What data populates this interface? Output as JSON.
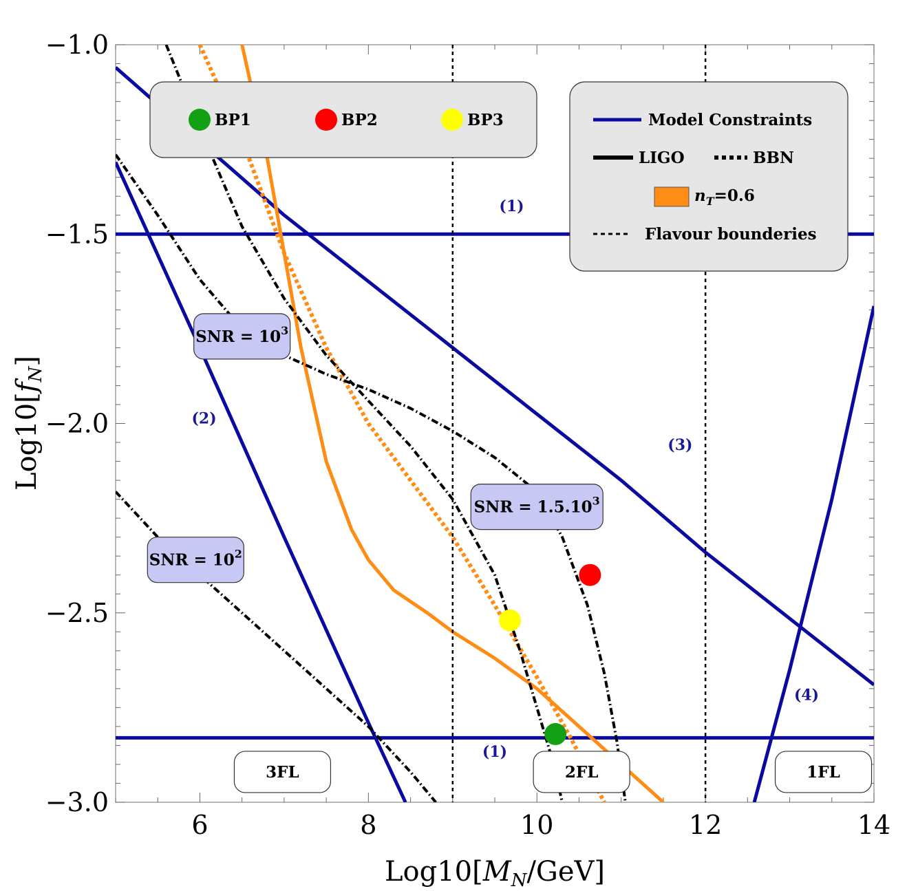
{
  "chart_data": {
    "type": "line",
    "xlabel": "Log10[M_N/GeV]",
    "ylabel": "Log10[f_N]",
    "xlim": [
      5,
      14
    ],
    "ylim": [
      -3.0,
      -1.0
    ],
    "x_ticks": [
      "6",
      "8",
      "10",
      "12",
      "14"
    ],
    "y_ticks": [
      "-1.0",
      "-1.5",
      "-2.0",
      "-2.5",
      "-3.0"
    ],
    "colors": {
      "model": "#0a0aa0",
      "orange": "#ff8c14",
      "black": "#000000",
      "legend_box": "#e6e6e6",
      "snr_box": "#c8c8f5",
      "bp1": "#14a014",
      "bp2": "#ff0000",
      "bp3": "#ffff00"
    },
    "series": [
      {
        "name": "(1)",
        "style": "model",
        "x": [
          5,
          14
        ],
        "y": [
          -1.5,
          -1.5
        ]
      },
      {
        "name": "(1)",
        "style": "model",
        "x": [
          5,
          14
        ],
        "y": [
          -2.83,
          -2.83
        ]
      },
      {
        "name": "(2)",
        "style": "model",
        "x": [
          5.0,
          6.0,
          7.0,
          8.0,
          8.44
        ],
        "y": [
          -1.31,
          -1.8,
          -2.3,
          -2.79,
          -3.0
        ]
      },
      {
        "name": "(3)",
        "style": "model",
        "x": [
          5.0,
          7.0,
          9.0,
          11.0,
          12.0,
          14.0
        ],
        "y": [
          -1.06,
          -1.45,
          -1.8,
          -2.15,
          -2.34,
          -2.69
        ]
      },
      {
        "name": "(4)",
        "style": "model",
        "x": [
          12.58,
          13.0,
          13.5,
          14.0
        ],
        "y": [
          -3.0,
          -2.65,
          -2.2,
          -1.69
        ]
      },
      {
        "name": "",
        "style": "orange-solid",
        "x": [
          6.5,
          6.8,
          7.0,
          7.2,
          7.5,
          7.8,
          8.0,
          8.3,
          8.7,
          9.0,
          9.5,
          10.0,
          10.5,
          11.0,
          11.5
        ],
        "y": [
          -1.0,
          -1.3,
          -1.55,
          -1.8,
          -2.1,
          -2.28,
          -2.36,
          -2.44,
          -2.5,
          -2.55,
          -2.62,
          -2.7,
          -2.8,
          -2.9,
          -3.0
        ]
      },
      {
        "name": "",
        "style": "orange-dot",
        "x": [
          6.0,
          6.5,
          7.0,
          7.5,
          8.0,
          8.5,
          9.0,
          9.5,
          10.0,
          10.4,
          10.8
        ],
        "y": [
          -1.0,
          -1.25,
          -1.55,
          -1.8,
          -2.0,
          -2.15,
          -2.3,
          -2.48,
          -2.67,
          -2.83,
          -3.0
        ]
      },
      {
        "name": "",
        "style": "black-dot",
        "x": [
          5.6,
          6.0,
          6.5,
          7.0,
          7.5,
          8.0,
          8.5,
          9.0,
          9.5,
          9.8,
          10.0,
          10.2,
          10.3
        ],
        "y": [
          -1.0,
          -1.22,
          -1.48,
          -1.67,
          -1.82,
          -1.94,
          -2.06,
          -2.2,
          -2.4,
          -2.6,
          -2.75,
          -2.9,
          -3.0
        ]
      },
      {
        "name": "",
        "style": "black-dot",
        "x": [
          5.0,
          5.5,
          6.0,
          6.5,
          7.0,
          7.5,
          8.0,
          8.5,
          9.0,
          9.5,
          10.0,
          10.3,
          10.6,
          10.8,
          10.95,
          11.05
        ],
        "y": [
          -1.29,
          -1.45,
          -1.62,
          -1.75,
          -1.82,
          -1.87,
          -1.91,
          -1.96,
          -2.02,
          -2.09,
          -2.18,
          -2.3,
          -2.48,
          -2.66,
          -2.84,
          -3.0
        ]
      },
      {
        "name": "",
        "style": "black-dot",
        "x": [
          5.0,
          5.5,
          6.0,
          6.5,
          7.0,
          7.5,
          8.0,
          8.5,
          8.8
        ],
        "y": [
          -2.18,
          -2.3,
          -2.4,
          -2.5,
          -2.6,
          -2.7,
          -2.8,
          -2.92,
          -3.0
        ]
      },
      {
        "name": "",
        "style": "flavour",
        "x": [
          9,
          9
        ],
        "y": [
          -1.0,
          -3.0
        ]
      },
      {
        "name": "",
        "style": "flavour",
        "x": [
          12,
          12
        ],
        "y": [
          -1.0,
          -3.0
        ]
      }
    ],
    "points": [
      {
        "name": "BP1",
        "x": 10.22,
        "y": -2.82,
        "color": "#14a014"
      },
      {
        "name": "BP2",
        "x": 10.63,
        "y": -2.4,
        "color": "#ff0000"
      },
      {
        "name": "BP3",
        "x": 9.68,
        "y": -2.52,
        "color": "#ffff00"
      }
    ],
    "annotations": {
      "region_labels": [
        {
          "text": "(1)",
          "x": 9.7,
          "y": -1.44
        },
        {
          "text": "(1)",
          "x": 9.5,
          "y": -2.88
        },
        {
          "text": "(2)",
          "x": 6.05,
          "y": -2.0
        },
        {
          "text": "(3)",
          "x": 11.7,
          "y": -2.07
        },
        {
          "text": "(4)",
          "x": 13.2,
          "y": -2.73
        }
      ],
      "snr_boxes": [
        {
          "text_base": "SNR = 10",
          "sup": "3",
          "x": 6.5,
          "y": -1.77
        },
        {
          "text_base": "SNR = 1.5.10",
          "sup": "3",
          "x": 10.0,
          "y": -2.22
        },
        {
          "text_base": "SNR = 10",
          "sup": "2",
          "x": 5.95,
          "y": -2.36
        }
      ],
      "flavour_boxes": [
        {
          "text": "3FL",
          "x": 6.98,
          "y": -2.92
        },
        {
          "text": "2FL",
          "x": 10.53,
          "y": -2.92
        },
        {
          "text": "1FL",
          "x": 13.4,
          "y": -2.92
        }
      ]
    },
    "legend_points": [
      "BP1",
      "BP2",
      "BP3"
    ],
    "legend": [
      "Model Constraints",
      "LIGO",
      "BBN",
      "n_T=0.6",
      "Flavour bounderies"
    ],
    "legend_placement": [
      "top-left",
      "top-right"
    ]
  }
}
